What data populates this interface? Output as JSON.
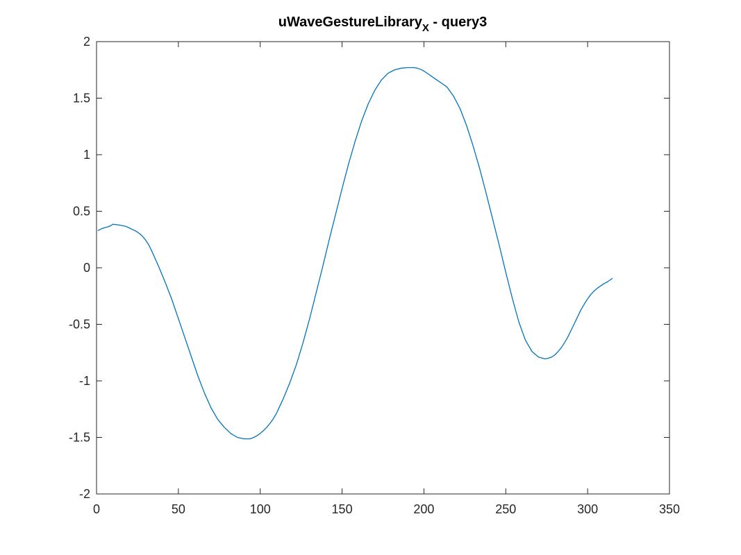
{
  "chart_data": {
    "type": "line",
    "title": {
      "main": "uWaveGestureLibrary",
      "subscript": "X",
      "suffix": " - query3"
    },
    "xlabel": "",
    "ylabel": "",
    "xlim": [
      0,
      350
    ],
    "ylim": [
      -2,
      2
    ],
    "x_ticks": [
      0,
      50,
      100,
      150,
      200,
      250,
      300,
      350
    ],
    "y_ticks": [
      -2,
      -1.5,
      -1,
      -0.5,
      0,
      0.5,
      1,
      1.5,
      2
    ],
    "x_tick_labels": [
      "0",
      "50",
      "100",
      "150",
      "200",
      "250",
      "300",
      "350"
    ],
    "y_tick_labels": [
      "-2",
      "-1.5",
      "-1",
      "-0.5",
      "0",
      "0.5",
      "1",
      "1.5",
      "2"
    ],
    "grid": false,
    "box": true,
    "series": [
      {
        "color": "#0072BD",
        "x": [
          1,
          3,
          5,
          7,
          9,
          10,
          12,
          14,
          16,
          18,
          20,
          22,
          24,
          26,
          28,
          30,
          32,
          34,
          36,
          38,
          40,
          42,
          44,
          46,
          48,
          50,
          54,
          58,
          62,
          66,
          70,
          74,
          78,
          82,
          86,
          90,
          92,
          94,
          96,
          98,
          100,
          102,
          104,
          106,
          108,
          110,
          114,
          118,
          122,
          126,
          130,
          134,
          138,
          142,
          146,
          150,
          154,
          158,
          162,
          166,
          170,
          174,
          178,
          182,
          186,
          190,
          192,
          194,
          196,
          198,
          200,
          202,
          206,
          210,
          214,
          218,
          222,
          226,
          230,
          234,
          238,
          242,
          246,
          250,
          254,
          258,
          262,
          266,
          270,
          274,
          276,
          278,
          280,
          282,
          284,
          286,
          288,
          290,
          292,
          294,
          296,
          298,
          300,
          302,
          304,
          306,
          308,
          310,
          312,
          314,
          315
        ],
        "y": [
          0.33,
          0.345,
          0.355,
          0.362,
          0.375,
          0.385,
          0.382,
          0.378,
          0.372,
          0.366,
          0.352,
          0.338,
          0.325,
          0.305,
          0.28,
          0.245,
          0.2,
          0.14,
          0.075,
          0.01,
          -0.06,
          -0.13,
          -0.205,
          -0.28,
          -0.365,
          -0.45,
          -0.62,
          -0.79,
          -0.96,
          -1.11,
          -1.24,
          -1.34,
          -1.41,
          -1.465,
          -1.5,
          -1.512,
          -1.513,
          -1.512,
          -1.5,
          -1.485,
          -1.465,
          -1.44,
          -1.41,
          -1.375,
          -1.335,
          -1.285,
          -1.16,
          -1.02,
          -0.86,
          -0.67,
          -0.46,
          -0.23,
          0.0,
          0.24,
          0.47,
          0.7,
          0.92,
          1.12,
          1.3,
          1.45,
          1.57,
          1.66,
          1.72,
          1.75,
          1.765,
          1.77,
          1.77,
          1.77,
          1.765,
          1.755,
          1.74,
          1.72,
          1.68,
          1.64,
          1.6,
          1.52,
          1.41,
          1.26,
          1.08,
          0.88,
          0.66,
          0.43,
          0.2,
          -0.04,
          -0.27,
          -0.48,
          -0.64,
          -0.74,
          -0.79,
          -0.805,
          -0.8,
          -0.79,
          -0.77,
          -0.74,
          -0.705,
          -0.66,
          -0.61,
          -0.55,
          -0.49,
          -0.43,
          -0.37,
          -0.32,
          -0.275,
          -0.235,
          -0.205,
          -0.18,
          -0.16,
          -0.14,
          -0.125,
          -0.105,
          -0.095
        ]
      }
    ]
  }
}
